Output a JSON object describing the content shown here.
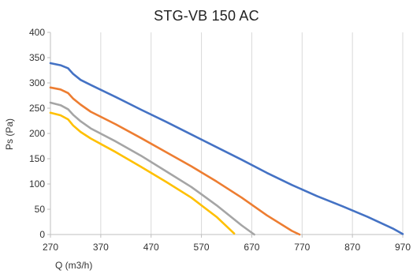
{
  "chart_data": {
    "type": "line",
    "title": "STG-VB 150 AC",
    "xlabel": "Q (m3/h)",
    "ylabel": "Ps (Pa)",
    "xlim": [
      270,
      970
    ],
    "ylim": [
      0,
      400
    ],
    "x_ticks": [
      270,
      370,
      470,
      570,
      670,
      770,
      870,
      970
    ],
    "y_ticks": [
      0,
      50,
      100,
      150,
      200,
      250,
      300,
      350,
      400
    ],
    "grid": "vertical",
    "legend": "none",
    "series": [
      {
        "color": "#4472C4",
        "x": [
          270,
          290,
          305,
          315,
          330,
          350,
          400,
          450,
          500,
          550,
          600,
          650,
          700,
          750,
          800,
          850,
          900,
          950,
          970
        ],
        "y": [
          339,
          335,
          329,
          318,
          306,
          296,
          272,
          247,
          223,
          198,
          173,
          148,
          122,
          98,
          76,
          56,
          35,
          12,
          1
        ]
      },
      {
        "color": "#ED7D31",
        "x": [
          270,
          290,
          305,
          315,
          330,
          350,
          400,
          450,
          500,
          550,
          600,
          650,
          700,
          750,
          765
        ],
        "y": [
          291,
          287,
          280,
          269,
          257,
          243,
          218,
          191,
          163,
          135,
          105,
          73,
          38,
          7,
          0
        ]
      },
      {
        "color": "#A5A5A5",
        "x": [
          270,
          290,
          305,
          315,
          330,
          350,
          400,
          450,
          500,
          550,
          600,
          650,
          675
        ],
        "y": [
          261,
          256,
          248,
          237,
          224,
          210,
          184,
          156,
          125,
          94,
          58,
          18,
          0
        ]
      },
      {
        "color": "#FFC000",
        "x": [
          270,
          290,
          305,
          315,
          330,
          350,
          400,
          450,
          500,
          550,
          600,
          635
        ],
        "y": [
          241,
          236,
          228,
          216,
          203,
          190,
          163,
          134,
          104,
          73,
          35,
          2
        ]
      }
    ]
  }
}
